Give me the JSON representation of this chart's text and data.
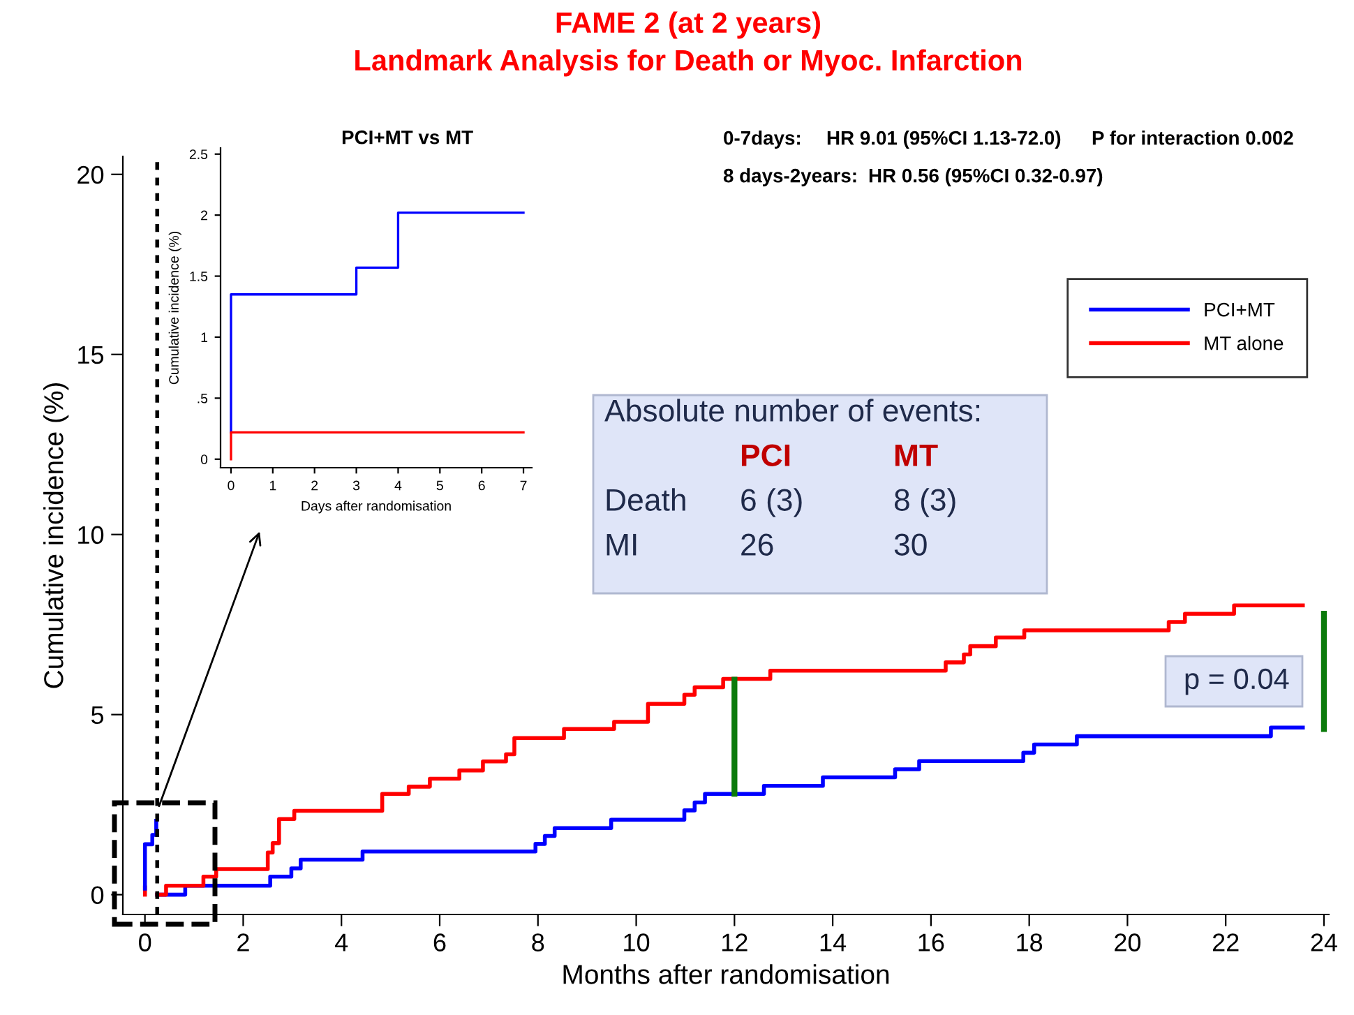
{
  "chart_data": [
    {
      "type": "step",
      "title": "FAME 2 (at 2 years)",
      "subtitle": "Landmark Analysis for Death or Myoc. Infarction",
      "xlabel": "Months after randomisation",
      "ylabel": "Cumulative incidence (%)",
      "xlim": [
        -0.45,
        24.1
      ],
      "ylim": [
        -0.55,
        20.5
      ],
      "xticks": [
        0,
        2,
        4,
        6,
        8,
        10,
        12,
        14,
        16,
        18,
        20,
        22,
        24
      ],
      "yticks": [
        0,
        5,
        10,
        15,
        20
      ],
      "legend": "top right",
      "grid": false,
      "marker": "none",
      "line_style": "solid",
      "series": [
        {
          "name": "PCI+MT",
          "color": "#0000ff",
          "x": [
            0.25,
            0.82,
            2.55,
            2.98,
            3.17,
            4.43,
            7.95,
            8.14,
            8.34,
            9.49,
            10.98,
            11.19,
            11.4,
            12.6,
            13.8,
            15.27,
            15.76,
            17.88,
            18.1,
            18.97,
            22.92,
            23.57
          ],
          "values": [
            0,
            0.25,
            0.5,
            0.73,
            0.97,
            1.2,
            1.41,
            1.63,
            1.85,
            2.08,
            2.34,
            2.56,
            2.8,
            3.02,
            3.26,
            3.48,
            3.71,
            3.94,
            4.17,
            4.4,
            4.64,
            4.64
          ]
        },
        {
          "name": "MT alone",
          "color": "#ff0000",
          "x": [
            0.25,
            0.43,
            1.19,
            1.45,
            2.5,
            2.6,
            2.73,
            3.04,
            4.83,
            5.37,
            5.8,
            6.4,
            6.88,
            7.35,
            7.52,
            8.53,
            9.55,
            10.24,
            10.98,
            11.19,
            11.77,
            12.73,
            16.3,
            16.67,
            16.8,
            17.32,
            17.9,
            20.84,
            21.17,
            22.17,
            23.57
          ],
          "values": [
            0,
            0.25,
            0.5,
            0.71,
            1.17,
            1.43,
            2.1,
            2.33,
            2.8,
            3.0,
            3.22,
            3.45,
            3.7,
            3.9,
            4.35,
            4.6,
            4.8,
            5.3,
            5.55,
            5.76,
            5.99,
            6.22,
            6.45,
            6.67,
            6.9,
            7.14,
            7.34,
            7.57,
            7.8,
            8.03,
            8.03
          ]
        },
        {
          "color": "#ff0000",
          "x": [
            0,
            0
          ],
          "values": [
            0,
            0.2
          ]
        },
        {
          "color": "#0000ff",
          "x": [
            0,
            0,
            0.15,
            0.23
          ],
          "values": [
            0.17,
            1.4,
            1.66,
            2.05
          ]
        },
        {
          "type": "line",
          "color": "#0a7a0a",
          "x": [
            12,
            12
          ],
          "values": [
            2.8,
            5.97
          ]
        },
        {
          "type": "line",
          "color": "#0a7a0a",
          "x": [
            24,
            24
          ],
          "values": [
            4.6,
            7.8
          ]
        }
      ],
      "ref_lines": [
        {
          "axis": "x",
          "value": 0.25,
          "color": "#000000",
          "line_style": "dotted"
        }
      ],
      "annotations": [
        "0-7days:",
        "HR 9.01 (95%CI 1.13-72.0)",
        "P for interaction 0.002",
        "8 days-2years:",
        "HR 0.56 (95%CI 0.32-0.97)",
        "Absolute number of events:",
        "PCI",
        "MT",
        "Death",
        "6 (3)",
        "8 (3)",
        "MI",
        "26",
        "30",
        "p = 0.04"
      ]
    },
    {
      "type": "step",
      "title": "PCI+MT vs MT",
      "xlabel": "Days after randomisation",
      "ylabel": "Cumulative incidence (%)",
      "xlim": [
        -0.25,
        7.2
      ],
      "ylim": [
        -0.07,
        2.55
      ],
      "xticks": [
        0,
        1,
        2,
        3,
        4,
        5,
        6,
        7
      ],
      "yticks": [
        0,
        {
          "value": 0.5,
          "label": ".5"
        },
        1,
        1.5,
        2,
        2.5
      ],
      "grid": false,
      "marker": "none",
      "line_style": "solid",
      "series": [
        {
          "color": "#0000ff",
          "x": [
            0,
            0,
            3,
            4,
            7
          ],
          "values": [
            0.22,
            1.35,
            1.57,
            2.02,
            2.02
          ]
        },
        {
          "color": "#ff0000",
          "x": [
            0,
            0,
            7
          ],
          "values": [
            0,
            0.22,
            0.22
          ]
        }
      ]
    }
  ]
}
